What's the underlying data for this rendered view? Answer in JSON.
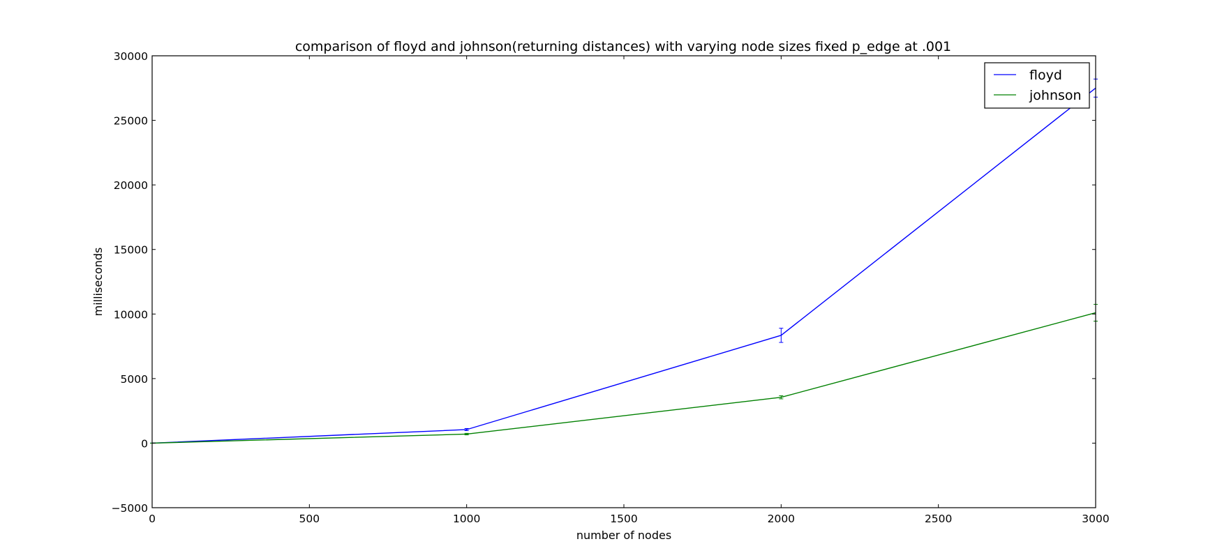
{
  "chart_data": {
    "type": "line",
    "title": "comparison of floyd and johnson(returning distances) with varying node sizes fixed p_edge at .001",
    "xlabel": "number of nodes",
    "ylabel": "milliseconds",
    "xlim": [
      0,
      3000
    ],
    "ylim": [
      -5000,
      30000
    ],
    "x_ticks": [
      0,
      500,
      1000,
      1500,
      2000,
      2500,
      3000
    ],
    "x_tick_labels": [
      "0",
      "500",
      "1000",
      "1500",
      "2000",
      "2500",
      "3000"
    ],
    "y_ticks": [
      -5000,
      0,
      5000,
      10000,
      15000,
      20000,
      25000,
      30000
    ],
    "y_tick_labels": [
      "−5000",
      "0",
      "5000",
      "10000",
      "15000",
      "20000",
      "25000",
      "30000"
    ],
    "grid": false,
    "legend_position": "top-right",
    "series": [
      {
        "name": "floyd",
        "color": "#0000ff",
        "x": [
          0,
          1000,
          2000,
          3000
        ],
        "values": [
          0,
          1050,
          8350,
          27500
        ],
        "error": [
          0,
          80,
          550,
          700
        ]
      },
      {
        "name": "johnson",
        "color": "#008000",
        "x": [
          0,
          1000,
          2000,
          3000
        ],
        "values": [
          0,
          700,
          3550,
          10100
        ],
        "error": [
          0,
          60,
          120,
          650
        ]
      }
    ]
  }
}
